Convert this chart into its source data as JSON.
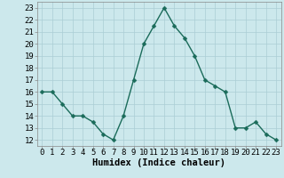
{
  "x": [
    0,
    1,
    2,
    3,
    4,
    5,
    6,
    7,
    8,
    9,
    10,
    11,
    12,
    13,
    14,
    15,
    16,
    17,
    18,
    19,
    20,
    21,
    22,
    23
  ],
  "y": [
    16,
    16,
    15,
    14,
    14,
    13.5,
    12.5,
    12,
    14,
    17,
    20,
    21.5,
    23,
    21.5,
    20.5,
    19,
    17,
    16.5,
    16,
    13,
    13,
    13.5,
    12.5,
    12
  ],
  "line_color": "#1a6b5a",
  "marker_color": "#1a6b5a",
  "bg_color": "#cce8ec",
  "grid_color": "#aacdd4",
  "xlabel": "Humidex (Indice chaleur)",
  "ylim": [
    11.5,
    23.5
  ],
  "xlim": [
    -0.5,
    23.5
  ],
  "yticks": [
    12,
    13,
    14,
    15,
    16,
    17,
    18,
    19,
    20,
    21,
    22,
    23
  ],
  "xticks": [
    0,
    1,
    2,
    3,
    4,
    5,
    6,
    7,
    8,
    9,
    10,
    11,
    12,
    13,
    14,
    15,
    16,
    17,
    18,
    19,
    20,
    21,
    22,
    23
  ],
  "xtick_labels": [
    "0",
    "1",
    "2",
    "3",
    "4",
    "5",
    "6",
    "7",
    "8",
    "9",
    "10",
    "11",
    "12",
    "13",
    "14",
    "15",
    "16",
    "17",
    "18",
    "19",
    "20",
    "21",
    "22",
    "23"
  ],
  "xlabel_fontsize": 7.5,
  "tick_fontsize": 6.5,
  "marker_size": 2.5,
  "line_width": 1.0
}
